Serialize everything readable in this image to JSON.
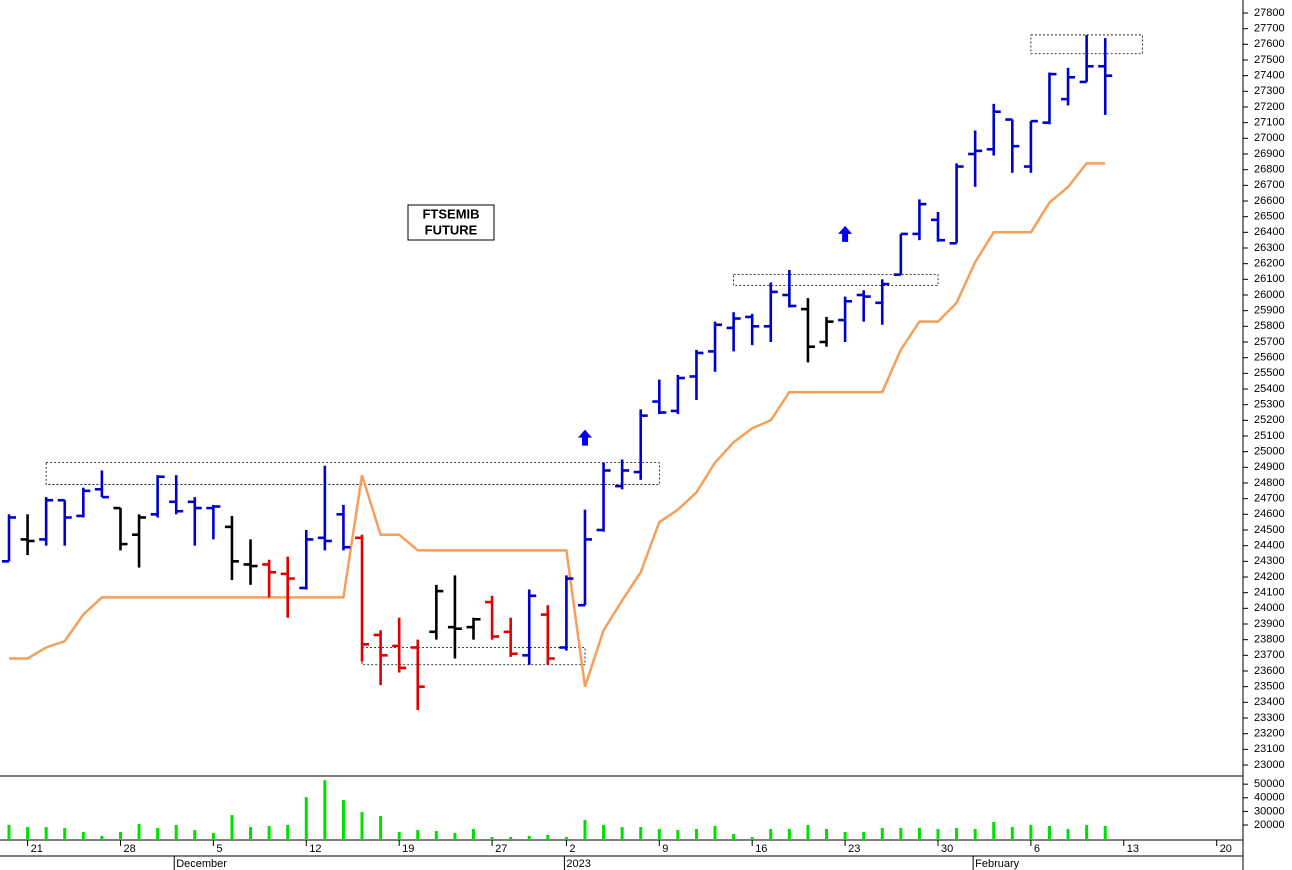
{
  "chart_data": {
    "type": "ohlc",
    "annotation_lines": [
      "FTSEMIB",
      "FUTURE"
    ],
    "categories": [
      null,
      "21",
      null,
      null,
      null,
      null,
      "28",
      null,
      null,
      null,
      null,
      "5",
      null,
      null,
      null,
      null,
      "12",
      null,
      null,
      null,
      null,
      "19",
      null,
      null,
      null,
      null,
      "27",
      null,
      null,
      null,
      "2",
      null,
      null,
      null,
      null,
      "9",
      null,
      null,
      null,
      null,
      "16",
      null,
      null,
      null,
      null,
      "23",
      null,
      null,
      null,
      null,
      "30",
      null,
      null,
      null,
      null,
      "6",
      null,
      null,
      null,
      null,
      "13",
      null,
      null,
      null,
      null,
      "20"
    ],
    "month_labels": [
      null,
      null,
      null,
      null,
      null,
      null,
      null,
      null,
      null,
      "December",
      null,
      null,
      null,
      null,
      null,
      null,
      null,
      null,
      null,
      null,
      null,
      null,
      null,
      null,
      null,
      null,
      null,
      null,
      null,
      null,
      "2023",
      null,
      null,
      null,
      null,
      null,
      null,
      null,
      null,
      null,
      null,
      null,
      null,
      null,
      null,
      null,
      null,
      null,
      null,
      null,
      null,
      null,
      "February",
      null,
      null,
      null,
      null,
      null,
      null,
      null,
      null,
      null,
      null,
      null,
      null,
      null
    ],
    "open": [
      24300,
      24440,
      24440,
      24690,
      24590,
      24760,
      24640,
      24470,
      24600,
      24680,
      24680,
      24640,
      24520,
      24280,
      24280,
      24220,
      24130,
      24450,
      24600,
      24450,
      23830,
      23760,
      23750,
      23850,
      23880,
      23880,
      24040,
      23850,
      23700,
      23960,
      23750,
      24020,
      24500,
      24780,
      24870,
      25320,
      25260,
      25480,
      25640,
      25790,
      25860,
      25800,
      26000,
      25910,
      25700,
      25840,
      26000,
      25950,
      26130,
      26390,
      26480,
      26330,
      26900,
      26930,
      27120,
      26820,
      27100,
      27250,
      27360,
      27460,
      null,
      null,
      null,
      null,
      null,
      null
    ],
    "high": [
      24600,
      24600,
      24710,
      24690,
      24770,
      24880,
      24640,
      24600,
      24850,
      24850,
      24710,
      24660,
      24590,
      24440,
      24310,
      24330,
      24500,
      24910,
      24660,
      24470,
      23860,
      23940,
      23800,
      24150,
      24210,
      23940,
      24080,
      23940,
      24120,
      24020,
      24210,
      24630,
      24930,
      24950,
      25270,
      25460,
      25490,
      25650,
      25830,
      25890,
      25880,
      26080,
      26160,
      25980,
      25860,
      25990,
      26030,
      26100,
      26390,
      26610,
      26530,
      26840,
      27050,
      27220,
      27120,
      27110,
      27420,
      27450,
      27660,
      27640,
      null,
      null,
      null,
      null,
      null,
      null
    ],
    "low": [
      24300,
      24340,
      24400,
      24400,
      24580,
      24710,
      24370,
      24260,
      24580,
      24600,
      24400,
      24440,
      24180,
      24150,
      24070,
      23940,
      24120,
      24370,
      24370,
      23660,
      23510,
      23590,
      23350,
      23800,
      23680,
      23800,
      23800,
      23690,
      23640,
      23640,
      23730,
      24020,
      24490,
      24760,
      24820,
      25240,
      25240,
      25330,
      25510,
      25640,
      25680,
      25700,
      25920,
      25570,
      25670,
      25700,
      25830,
      25810,
      26130,
      26350,
      26340,
      26330,
      26690,
      26890,
      26780,
      26780,
      27090,
      27210,
      27360,
      27150,
      null,
      null,
      null,
      null,
      null,
      null
    ],
    "close": [
      24580,
      24430,
      24690,
      24580,
      24750,
      24710,
      24410,
      24580,
      24840,
      24620,
      24640,
      24650,
      24300,
      24270,
      24230,
      24190,
      24440,
      24430,
      24390,
      23770,
      23700,
      23620,
      23500,
      24110,
      23870,
      23930,
      23820,
      23710,
      24080,
      23680,
      24190,
      24440,
      24880,
      24880,
      25230,
      25250,
      25470,
      25630,
      25810,
      25850,
      25800,
      26020,
      25930,
      25670,
      25830,
      25960,
      25990,
      26070,
      26390,
      26580,
      26350,
      26820,
      26920,
      27170,
      26950,
      27110,
      27410,
      27390,
      27460,
      27400,
      null,
      null,
      null,
      null,
      null,
      null
    ],
    "colors": [
      "#0000cc",
      "#000000",
      "#0000cc",
      "#0000cc",
      "#0000cc",
      "#0000cc",
      "#000000",
      "#000000",
      "#0000cc",
      "#0000cc",
      "#0000cc",
      "#0000cc",
      "#000000",
      "#000000",
      "#e00000",
      "#e00000",
      "#0000cc",
      "#0000cc",
      "#0000cc",
      "#e00000",
      "#e00000",
      "#e00000",
      "#e00000",
      "#000000",
      "#000000",
      "#000000",
      "#e00000",
      "#e00000",
      "#0000cc",
      "#e00000",
      "#0000cc",
      "#0000cc",
      "#0000cc",
      "#0000cc",
      "#0000cc",
      "#0000cc",
      "#0000cc",
      "#0000cc",
      "#0000cc",
      "#0000cc",
      "#0000cc",
      "#0000cc",
      "#0000cc",
      "#000000",
      "#000000",
      "#0000cc",
      "#0000cc",
      "#0000cc",
      "#0000cc",
      "#0000cc",
      "#0000cc",
      "#0000cc",
      "#0000cc",
      "#0000cc",
      "#0000cc",
      "#0000cc",
      "#0000cc",
      "#0000cc",
      "#0000cc",
      "#0000cc",
      null,
      null,
      null,
      null,
      null,
      null
    ],
    "line": {
      "color": "#f5a05a",
      "values": [
        23680,
        23680,
        23750,
        23790,
        23960,
        24070,
        24070,
        24070,
        24070,
        24070,
        24070,
        24070,
        24070,
        24070,
        24070,
        24070,
        24070,
        24070,
        24070,
        24850,
        24470,
        24470,
        24370,
        24370,
        24370,
        24370,
        24370,
        24370,
        24370,
        24370,
        24370,
        23500,
        23860,
        24050,
        24230,
        24550,
        24630,
        24740,
        24930,
        25060,
        25150,
        25200,
        25380,
        25380,
        25380,
        25380,
        25380,
        25380,
        25650,
        25830,
        25830,
        25950,
        26210,
        26400,
        26400,
        26400,
        26590,
        26690,
        26840,
        26840,
        null,
        null,
        null,
        null,
        null,
        null
      ]
    },
    "boxes": [
      {
        "from": 2,
        "to": 35,
        "low": 24790,
        "high": 24930
      },
      {
        "from": 19,
        "to": 31,
        "low": 23640,
        "high": 23750
      },
      {
        "from": 39,
        "to": 50,
        "low": 26060,
        "high": 26130
      },
      {
        "from": 55,
        "to": 61,
        "low": 27540,
        "high": 27660
      }
    ],
    "arrows": {
      "color": "#0000ee",
      "points": [
        {
          "index": 31,
          "value": 25090
        },
        {
          "index": 45,
          "value": 26390
        }
      ]
    },
    "ylim": [
      23000,
      27800
    ],
    "yticks": [
      23000,
      23100,
      23200,
      23300,
      23400,
      23500,
      23600,
      23700,
      23800,
      23900,
      24000,
      24100,
      24200,
      24300,
      24400,
      24500,
      24600,
      24700,
      24800,
      24900,
      25000,
      25100,
      25200,
      25300,
      25400,
      25500,
      25600,
      25700,
      25800,
      25900,
      26000,
      26100,
      26200,
      26300,
      26400,
      26500,
      26600,
      26700,
      26800,
      26900,
      27000,
      27100,
      27200,
      27300,
      27400,
      27500,
      27600,
      27700,
      27800
    ],
    "volume": {
      "color": "#00e000",
      "ylim": [
        9000,
        56000
      ],
      "yticks": [
        20000,
        30000,
        40000,
        50000
      ],
      "values": [
        20000,
        18500,
        18500,
        17800,
        14900,
        12000,
        14900,
        20700,
        17800,
        20000,
        16300,
        14100,
        27300,
        18500,
        19300,
        20000,
        40500,
        52900,
        38300,
        29500,
        26600,
        14900,
        16300,
        15600,
        14100,
        17100,
        11200,
        11200,
        12000,
        12700,
        11200,
        23700,
        20000,
        18500,
        18500,
        17100,
        16300,
        17100,
        19300,
        13400,
        11200,
        17100,
        17100,
        20000,
        17100,
        14900,
        14900,
        17800,
        17800,
        17800,
        17100,
        17800,
        17100,
        22200,
        18500,
        20000,
        19300,
        17100,
        20000,
        19300,
        null,
        null,
        null,
        null,
        null,
        null
      ]
    }
  }
}
